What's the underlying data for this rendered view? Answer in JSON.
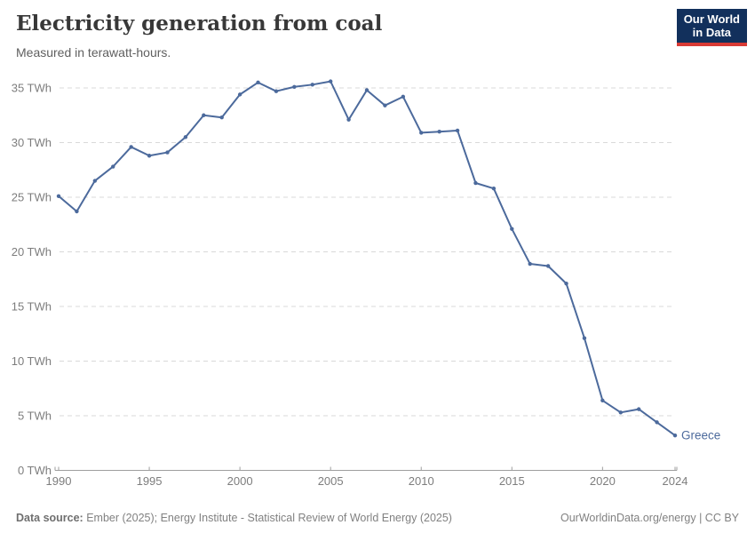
{
  "header": {
    "title": "Electricity generation from coal",
    "subtitle": "Measured in terawatt-hours.",
    "logo": {
      "line1": "Our World",
      "line2": "in Data"
    }
  },
  "footer": {
    "source_label": "Data source:",
    "source_text": " Ember (2025); Energy Institute - Statistical Review of World Energy (2025)",
    "credit": "OurWorldinData.org/energy | CC BY"
  },
  "colors": {
    "line": "#4c6a9c",
    "grid": "#d9d9d9",
    "axis": "#9e9e9e",
    "tick_label": "#7d7d7d",
    "logo_bg": "#12305c",
    "logo_accent": "#d93a35"
  },
  "chart_data": {
    "type": "line",
    "title": "Electricity generation from coal",
    "subtitle": "Measured in terawatt-hours.",
    "xlabel": "",
    "ylabel": "TWh",
    "xlim": [
      1990,
      2024
    ],
    "ylim": [
      0,
      35
    ],
    "grid": "horizontal-dashed",
    "legend": "end-of-line-label",
    "y_ticks": [
      0,
      5,
      10,
      15,
      20,
      25,
      30,
      35
    ],
    "y_tick_format": "{v} TWh",
    "x_ticks": [
      1990,
      1995,
      2000,
      2005,
      2010,
      2015,
      2020,
      2024
    ],
    "series": [
      {
        "name": "Greece",
        "x": [
          1990,
          1991,
          1992,
          1993,
          1994,
          1995,
          1996,
          1997,
          1998,
          1999,
          2000,
          2001,
          2002,
          2003,
          2004,
          2005,
          2006,
          2007,
          2008,
          2009,
          2010,
          2011,
          2012,
          2013,
          2014,
          2015,
          2016,
          2017,
          2018,
          2019,
          2020,
          2021,
          2022,
          2023,
          2024
        ],
        "values": [
          25.1,
          23.7,
          26.5,
          27.8,
          29.6,
          28.8,
          29.1,
          30.5,
          32.5,
          32.3,
          34.4,
          35.5,
          34.7,
          35.1,
          35.3,
          35.6,
          32.1,
          34.8,
          33.4,
          34.2,
          30.9,
          31.0,
          31.1,
          26.3,
          25.8,
          22.1,
          18.9,
          18.7,
          17.1,
          12.1,
          6.4,
          5.3,
          5.6,
          4.4,
          3.2
        ]
      }
    ]
  }
}
